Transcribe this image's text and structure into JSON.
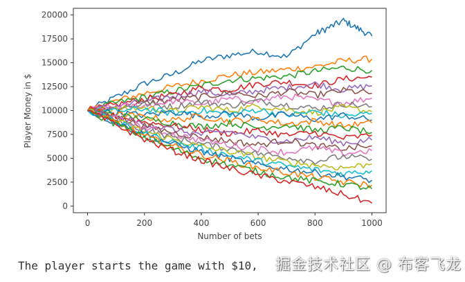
{
  "chart_data": {
    "type": "line",
    "title": "",
    "xlabel": "Number of bets",
    "ylabel": "Player Money in $",
    "xlim": [
      -50,
      1050
    ],
    "ylim": [
      -700,
      20700
    ],
    "xticks": [
      0,
      200,
      400,
      600,
      800,
      1000
    ],
    "yticks": [
      0,
      2500,
      5000,
      7500,
      10000,
      12500,
      15000,
      17500,
      20000
    ],
    "grid": false,
    "legend": "none",
    "colors": [
      "#1f77b4",
      "#ff7f0e",
      "#2ca02c",
      "#d62728",
      "#9467bd",
      "#8c564b",
      "#e377c2",
      "#7f7f7f",
      "#bcbd22",
      "#17becf"
    ],
    "series": [
      {
        "x": [
          0,
          100,
          200,
          300,
          400,
          500,
          600,
          700,
          800,
          850,
          900,
          950,
          1000
        ],
        "values": [
          10000,
          11400,
          12800,
          13800,
          15200,
          15800,
          16200,
          15600,
          18000,
          18700,
          19400,
          18600,
          17800
        ]
      },
      {
        "x": [
          0,
          100,
          200,
          300,
          400,
          500,
          600,
          700,
          800,
          900,
          1000
        ],
        "values": [
          10000,
          11000,
          11800,
          12500,
          13100,
          13700,
          14000,
          14300,
          14600,
          15200,
          15400
        ]
      },
      {
        "x": [
          0,
          100,
          200,
          300,
          400,
          500,
          600,
          700,
          800,
          900,
          1000
        ],
        "values": [
          10000,
          10800,
          11400,
          12000,
          12600,
          13200,
          13400,
          13600,
          14100,
          14500,
          14200
        ]
      },
      {
        "x": [
          0,
          100,
          200,
          300,
          400,
          500,
          600,
          700,
          800,
          900,
          1000
        ],
        "values": [
          10000,
          10600,
          11200,
          11600,
          12400,
          12200,
          12800,
          13000,
          12600,
          13300,
          13500
        ]
      },
      {
        "x": [
          0,
          100,
          200,
          300,
          400,
          500,
          600,
          700,
          800,
          900,
          1000
        ],
        "values": [
          10000,
          10500,
          10900,
          11500,
          12000,
          11600,
          12100,
          12400,
          12800,
          12200,
          12600
        ]
      },
      {
        "x": [
          0,
          100,
          200,
          300,
          400,
          500,
          600,
          700,
          800,
          900,
          1000
        ],
        "values": [
          10000,
          10300,
          10800,
          11100,
          11400,
          11900,
          11500,
          12000,
          11600,
          12100,
          11800
        ]
      },
      {
        "x": [
          0,
          100,
          200,
          300,
          400,
          500,
          600,
          700,
          800,
          900,
          1000
        ],
        "values": [
          10000,
          10400,
          10500,
          11000,
          10700,
          11200,
          11000,
          11500,
          11100,
          10800,
          11300
        ]
      },
      {
        "x": [
          0,
          100,
          200,
          300,
          400,
          500,
          600,
          700,
          800,
          900,
          1000
        ],
        "values": [
          10000,
          10200,
          10700,
          10400,
          10900,
          10500,
          11000,
          10600,
          10200,
          10700,
          10400
        ]
      },
      {
        "x": [
          0,
          100,
          200,
          300,
          400,
          500,
          600,
          700,
          800,
          900,
          1000
        ],
        "values": [
          10000,
          10100,
          10300,
          9900,
          10400,
          10000,
          10500,
          10100,
          9800,
          10300,
          9900
        ]
      },
      {
        "x": [
          0,
          100,
          200,
          300,
          400,
          500,
          600,
          700,
          800,
          900,
          1000
        ],
        "values": [
          10000,
          9900,
          10200,
          9700,
          10000,
          9600,
          10100,
          9500,
          9900,
          9400,
          9700
        ]
      },
      {
        "x": [
          0,
          100,
          200,
          300,
          400,
          500,
          600,
          700,
          800,
          900,
          1000
        ],
        "values": [
          10000,
          9800,
          9500,
          9900,
          9400,
          9700,
          9200,
          9600,
          9100,
          9500,
          9000
        ]
      },
      {
        "x": [
          0,
          100,
          200,
          300,
          400,
          500,
          600,
          700,
          800,
          900,
          1000
        ],
        "values": [
          10000,
          9600,
          9300,
          9000,
          9400,
          8900,
          9100,
          8600,
          8900,
          8400,
          8700
        ]
      },
      {
        "x": [
          0,
          100,
          200,
          300,
          400,
          500,
          600,
          700,
          800,
          900,
          1000
        ],
        "values": [
          10000,
          9500,
          9100,
          8700,
          8300,
          8700,
          8200,
          8500,
          7900,
          8200,
          7700
        ]
      },
      {
        "x": [
          0,
          100,
          200,
          300,
          400,
          500,
          600,
          700,
          800,
          900,
          1000
        ],
        "values": [
          10000,
          9400,
          8800,
          8400,
          8000,
          7600,
          7900,
          7400,
          7700,
          7100,
          7400
        ]
      },
      {
        "x": [
          0,
          100,
          200,
          300,
          400,
          500,
          600,
          700,
          800,
          900,
          1000
        ],
        "values": [
          10000,
          9300,
          8600,
          8000,
          7500,
          7800,
          7100,
          6800,
          7200,
          6600,
          6900
        ]
      },
      {
        "x": [
          0,
          100,
          200,
          300,
          400,
          500,
          600,
          700,
          800,
          900,
          1000
        ],
        "values": [
          10000,
          9200,
          8400,
          7700,
          7200,
          6800,
          6400,
          6900,
          6300,
          6000,
          6300
        ]
      },
      {
        "x": [
          0,
          100,
          200,
          300,
          400,
          500,
          600,
          700,
          800,
          900,
          1000
        ],
        "values": [
          10000,
          9100,
          8200,
          7500,
          6900,
          6400,
          6000,
          5600,
          6100,
          5500,
          5800
        ]
      },
      {
        "x": [
          0,
          100,
          200,
          300,
          400,
          500,
          600,
          700,
          800,
          900,
          1000
        ],
        "values": [
          10000,
          9000,
          8000,
          7200,
          6500,
          6000,
          5500,
          5100,
          4700,
          5200,
          4900
        ]
      },
      {
        "x": [
          0,
          100,
          200,
          300,
          400,
          500,
          600,
          700,
          800,
          900,
          1000
        ],
        "values": [
          10000,
          8900,
          7800,
          7000,
          6200,
          5700,
          5100,
          4600,
          4300,
          4000,
          4400
        ]
      },
      {
        "x": [
          0,
          100,
          200,
          300,
          400,
          500,
          600,
          700,
          800,
          900,
          1000
        ],
        "values": [
          10000,
          8800,
          7600,
          6700,
          6000,
          5300,
          4700,
          4200,
          3800,
          3400,
          3700
        ]
      },
      {
        "x": [
          0,
          100,
          200,
          300,
          400,
          500,
          600,
          700,
          800,
          900,
          1000
        ],
        "values": [
          10000,
          8700,
          7500,
          6500,
          5700,
          5000,
          4300,
          3900,
          3500,
          3100,
          2700
        ]
      },
      {
        "x": [
          0,
          100,
          200,
          300,
          400,
          500,
          600,
          700,
          800,
          900,
          1000
        ],
        "values": [
          10000,
          8700,
          7300,
          6300,
          5400,
          4700,
          4000,
          3500,
          3000,
          2500,
          2200
        ]
      },
      {
        "x": [
          0,
          100,
          200,
          300,
          400,
          500,
          600,
          700,
          800,
          900,
          1000
        ],
        "values": [
          10000,
          8600,
          7200,
          6000,
          5000,
          4300,
          3600,
          3000,
          2600,
          2300,
          1800
        ]
      },
      {
        "x": [
          0,
          100,
          200,
          300,
          400,
          500,
          600,
          700,
          800,
          900,
          1000
        ],
        "values": [
          10000,
          8500,
          7000,
          5800,
          4800,
          3900,
          3200,
          2600,
          2000,
          1200,
          300
        ]
      }
    ]
  },
  "caption": {
    "text": "The player starts the game with $10,"
  },
  "watermark": {
    "text": "掘金技术社区 @ 布客飞龙"
  }
}
